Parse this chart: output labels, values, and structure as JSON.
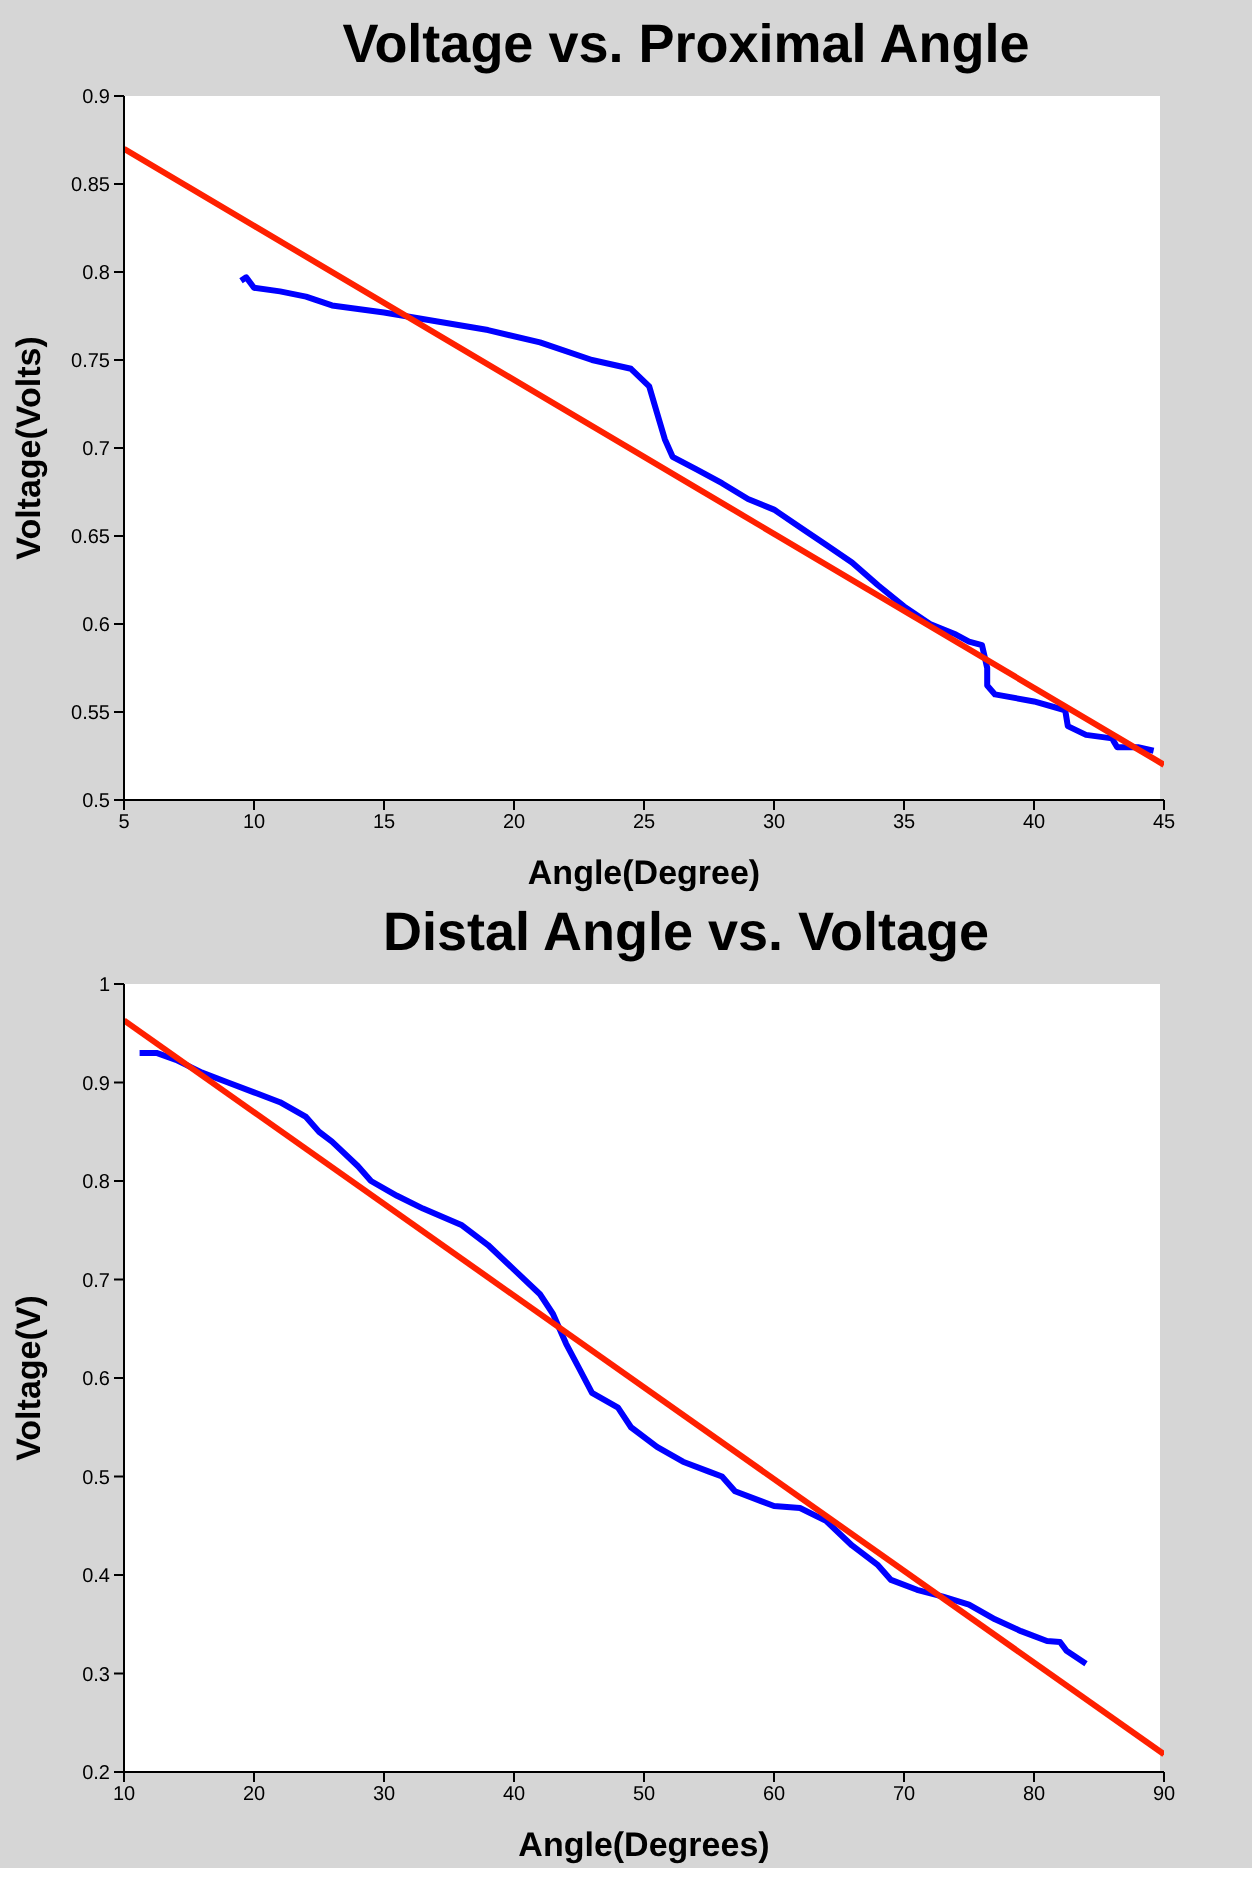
{
  "chart_data": [
    {
      "type": "line",
      "title": "Voltage vs. Proximal Angle",
      "xlabel": "Angle(Degree)",
      "ylabel": "Voltage(Volts)",
      "xlim": [
        5,
        45
      ],
      "xticks": [
        5,
        10,
        15,
        20,
        25,
        30,
        35,
        40,
        45
      ],
      "ylim": [
        0.5,
        0.9
      ],
      "yticks": [
        0.5,
        0.55,
        0.6,
        0.65,
        0.7,
        0.75,
        0.8,
        0.85,
        0.9
      ],
      "grid": false,
      "marker": "none",
      "line_style": "solid",
      "series": [
        {
          "color": "#0000ff",
          "x": [
            9.5,
            9.7,
            10,
            11,
            12,
            13,
            15,
            17,
            19,
            21,
            23,
            24.5,
            25.2,
            25.5,
            25.8,
            26.1,
            27,
            28,
            29,
            30,
            31,
            32,
            33,
            34,
            35,
            36,
            37,
            37.5,
            38,
            38.2,
            38.2,
            38.5,
            40,
            41.2,
            41.3,
            42,
            43,
            43.2,
            44,
            44.6
          ],
          "values": [
            0.795,
            0.797,
            0.791,
            0.789,
            0.786,
            0.781,
            0.777,
            0.772,
            0.767,
            0.76,
            0.75,
            0.745,
            0.735,
            0.72,
            0.705,
            0.695,
            0.688,
            0.68,
            0.671,
            0.665,
            0.655,
            0.645,
            0.635,
            0.622,
            0.61,
            0.6,
            0.594,
            0.59,
            0.588,
            0.575,
            0.565,
            0.56,
            0.556,
            0.551,
            0.542,
            0.537,
            0.535,
            0.53,
            0.53,
            0.528
          ]
        },
        {
          "color": "#ff2000",
          "x": [
            5,
            45
          ],
          "values": [
            0.87,
            0.52
          ]
        }
      ]
    },
    {
      "type": "line",
      "title": "Distal Angle vs. Voltage",
      "xlabel": "Angle(Degrees)",
      "ylabel": "Voltage(V)",
      "xlim": [
        10,
        90
      ],
      "xticks": [
        10,
        20,
        30,
        40,
        50,
        60,
        70,
        80,
        90
      ],
      "ylim": [
        0.2,
        1
      ],
      "yticks": [
        0.2,
        0.3,
        0.4,
        0.5,
        0.6,
        0.7,
        0.8,
        0.9,
        1
      ],
      "grid": false,
      "marker": "none",
      "line_style": "solid",
      "series": [
        {
          "color": "#0000ff",
          "x": [
            11.2,
            12.5,
            14,
            16,
            18,
            20,
            22,
            24,
            25,
            26,
            28,
            29,
            31,
            33,
            36,
            38,
            40,
            42,
            43,
            44,
            45,
            46,
            48,
            49,
            51,
            53,
            55,
            56,
            57,
            59,
            60,
            62,
            64,
            66,
            68,
            69,
            71,
            73,
            75,
            77,
            79,
            81,
            82,
            82.5,
            84
          ],
          "values": [
            0.93,
            0.93,
            0.923,
            0.91,
            0.9,
            0.89,
            0.88,
            0.865,
            0.85,
            0.84,
            0.815,
            0.8,
            0.785,
            0.772,
            0.755,
            0.735,
            0.71,
            0.685,
            0.665,
            0.635,
            0.61,
            0.585,
            0.57,
            0.55,
            0.53,
            0.515,
            0.505,
            0.5,
            0.485,
            0.475,
            0.47,
            0.468,
            0.455,
            0.43,
            0.41,
            0.395,
            0.385,
            0.378,
            0.37,
            0.355,
            0.343,
            0.333,
            0.332,
            0.323,
            0.31
          ]
        },
        {
          "color": "#ff2000",
          "x": [
            10,
            90
          ],
          "values": [
            0.963,
            0.218
          ]
        }
      ]
    }
  ]
}
